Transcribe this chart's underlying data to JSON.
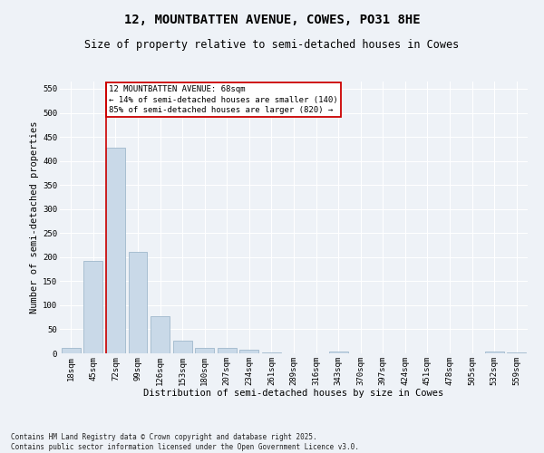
{
  "title_line1": "12, MOUNTBATTEN AVENUE, COWES, PO31 8HE",
  "title_line2": "Size of property relative to semi-detached houses in Cowes",
  "xlabel": "Distribution of semi-detached houses by size in Cowes",
  "ylabel": "Number of semi-detached properties",
  "bins": [
    "18sqm",
    "45sqm",
    "72sqm",
    "99sqm",
    "126sqm",
    "153sqm",
    "180sqm",
    "207sqm",
    "234sqm",
    "261sqm",
    "289sqm",
    "316sqm",
    "343sqm",
    "370sqm",
    "397sqm",
    "424sqm",
    "451sqm",
    "478sqm",
    "505sqm",
    "532sqm",
    "559sqm"
  ],
  "values": [
    12,
    193,
    427,
    211,
    77,
    26,
    11,
    11,
    8,
    1,
    0,
    0,
    3,
    0,
    0,
    0,
    0,
    0,
    0,
    3,
    2
  ],
  "bar_color": "#c9d9e8",
  "bar_edge_color": "#a0b8cc",
  "vline_x_index": 2,
  "vline_color": "#cc0000",
  "annotation_text": "12 MOUNTBATTEN AVENUE: 68sqm\n← 14% of semi-detached houses are smaller (140)\n85% of semi-detached houses are larger (820) →",
  "annotation_box_color": "#ffffff",
  "annotation_box_edge": "#cc0000",
  "ylim": [
    0,
    565
  ],
  "yticks": [
    0,
    50,
    100,
    150,
    200,
    250,
    300,
    350,
    400,
    450,
    500,
    550
  ],
  "footer_text": "Contains HM Land Registry data © Crown copyright and database right 2025.\nContains public sector information licensed under the Open Government Licence v3.0.",
  "bg_color": "#eef2f7",
  "plot_bg_color": "#eef2f7",
  "grid_color": "#ffffff",
  "title_fontsize": 10,
  "subtitle_fontsize": 8.5,
  "axis_label_fontsize": 7.5,
  "tick_fontsize": 6.5,
  "footer_fontsize": 5.5
}
